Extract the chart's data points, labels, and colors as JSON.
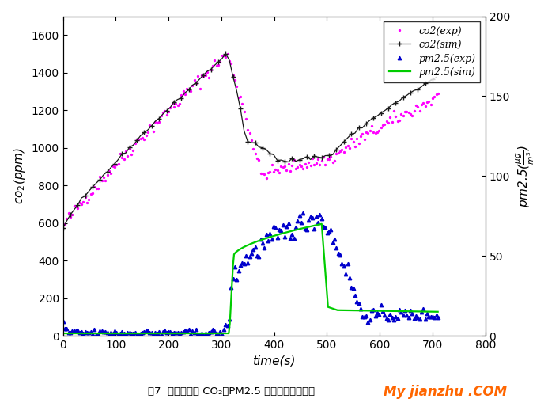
{
  "xlabel": "time(s)",
  "ylabel_left": "co2(ppm)",
  "ylabel_right": "pm2.5(μg/m³)",
  "xlim": [
    0,
    800
  ],
  "ylim_left": [
    0,
    1700
  ],
  "ylim_right": [
    0,
    200
  ],
  "xticks": [
    0,
    100,
    200,
    300,
    400,
    500,
    600,
    700,
    800
  ],
  "yticks_left": [
    0,
    200,
    400,
    600,
    800,
    1000,
    1200,
    1400,
    1600
  ],
  "yticks_right": [
    0,
    50,
    100,
    150,
    200
  ],
  "caption": "图7  主驾驶位置 CO２、PM2.5 浓度随时间变化图",
  "legend_labels": [
    "co2(exp)",
    "co2(sim)",
    "pm2.5(exp)",
    "pm2.5(sim)"
  ],
  "co2_exp_color": "#ff00ff",
  "co2_sim_color": "#1a1a1a",
  "pm25_exp_color": "#0000cc",
  "pm25_sim_color": "#00cc00",
  "watermark_text": "My jianzhu .COM",
  "watermark_color": "#ff6600",
  "scale": 8.5
}
